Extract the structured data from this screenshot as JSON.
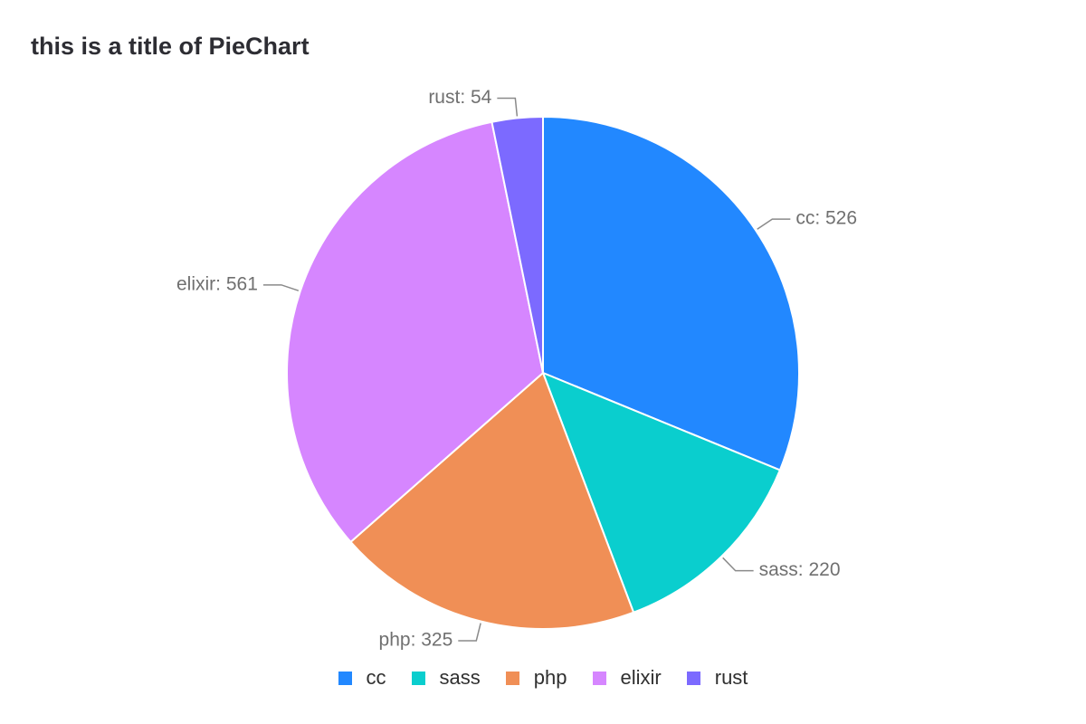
{
  "chart_data": {
    "type": "pie",
    "title": "this is a title of PieChart",
    "slices": [
      {
        "label": "cc",
        "value": 526,
        "color": "#2288FF",
        "display": "cc: 526"
      },
      {
        "label": "sass",
        "value": 220,
        "color": "#0ACECE",
        "display": "sass: 220"
      },
      {
        "label": "php",
        "value": 325,
        "color": "#F08F56",
        "display": "php: 325"
      },
      {
        "label": "elixir",
        "value": 561,
        "color": "#D686FF",
        "display": "elixir: 561"
      },
      {
        "label": "rust",
        "value": 54,
        "color": "#7C6AFF",
        "display": "rust: 54"
      }
    ],
    "legend": {
      "placement": "bottom-center"
    },
    "start": "12 o'clock, clockwise"
  }
}
